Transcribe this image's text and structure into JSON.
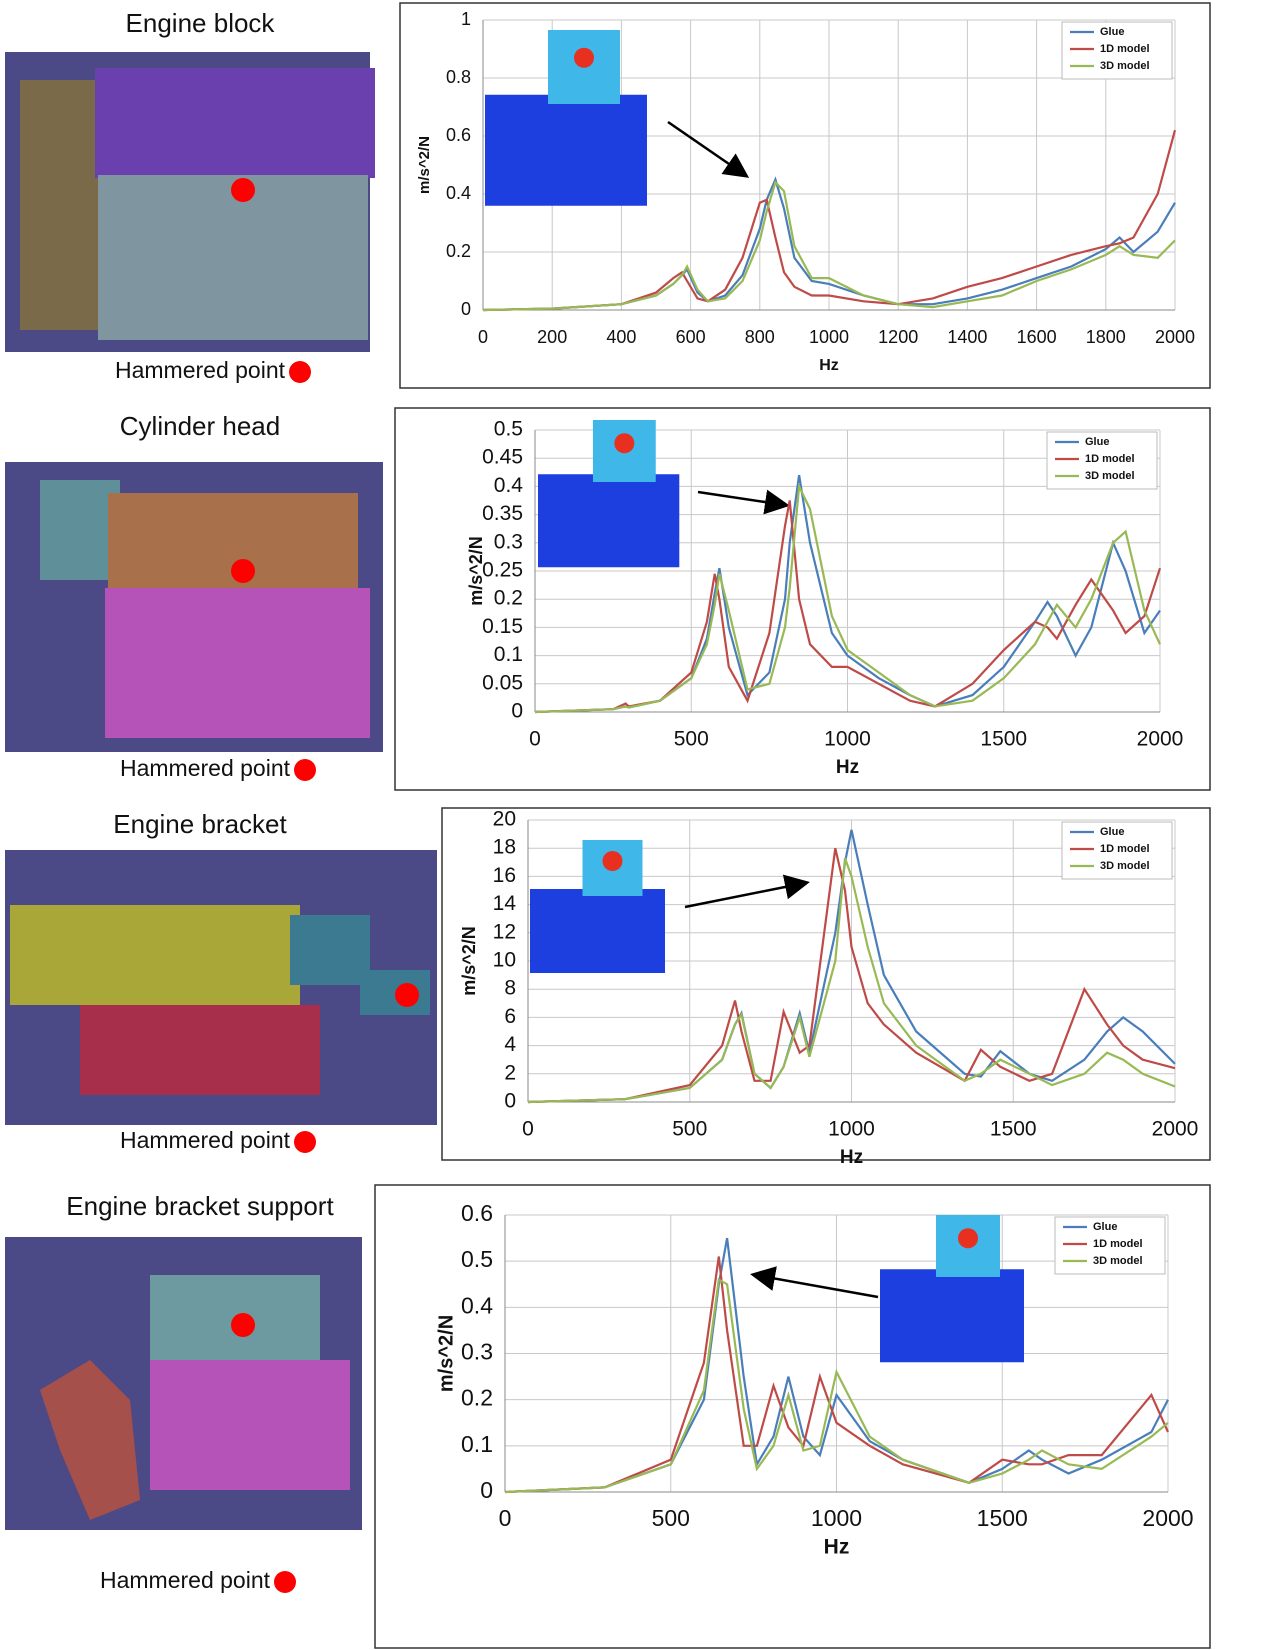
{
  "chart_data": [
    {
      "type": "line",
      "title": "Engine block",
      "annotation": "Hammered point",
      "xlabel": "Hz",
      "ylabel": "m/s^2/N",
      "x": [
        0,
        200,
        400,
        500,
        550,
        575,
        590,
        620,
        650,
        700,
        750,
        800,
        820,
        845,
        870,
        900,
        950,
        1000,
        1100,
        1200,
        1300,
        1400,
        1500,
        1600,
        1700,
        1800,
        1840,
        1880,
        1950,
        2000
      ],
      "series": [
        {
          "name": "Glue",
          "color": "#4a7ebb",
          "values": [
            0,
            0.005,
            0.02,
            0.05,
            0.09,
            0.12,
            0.14,
            0.06,
            0.03,
            0.05,
            0.12,
            0.28,
            0.38,
            0.45,
            0.35,
            0.18,
            0.1,
            0.09,
            0.05,
            0.02,
            0.02,
            0.04,
            0.07,
            0.11,
            0.15,
            0.21,
            0.25,
            0.2,
            0.27,
            0.37
          ]
        },
        {
          "name": "1D model",
          "color": "#be4b48",
          "values": [
            0,
            0.005,
            0.02,
            0.06,
            0.11,
            0.13,
            0.1,
            0.04,
            0.03,
            0.07,
            0.18,
            0.37,
            0.38,
            0.25,
            0.13,
            0.08,
            0.05,
            0.05,
            0.03,
            0.02,
            0.04,
            0.08,
            0.11,
            0.15,
            0.19,
            0.22,
            0.23,
            0.25,
            0.4,
            0.62
          ]
        },
        {
          "name": "3D model",
          "color": "#98b954",
          "values": [
            0,
            0.005,
            0.02,
            0.05,
            0.09,
            0.12,
            0.15,
            0.07,
            0.03,
            0.04,
            0.1,
            0.24,
            0.34,
            0.44,
            0.41,
            0.22,
            0.11,
            0.11,
            0.05,
            0.02,
            0.01,
            0.03,
            0.05,
            0.1,
            0.14,
            0.19,
            0.22,
            0.19,
            0.18,
            0.24
          ]
        }
      ],
      "xlim": [
        0,
        2000
      ],
      "xticks": [
        0,
        200,
        400,
        600,
        800,
        1000,
        1200,
        1400,
        1600,
        1800,
        2000
      ],
      "ylim": [
        0,
        1
      ],
      "yticks": [
        0,
        0.2,
        0.4,
        0.6,
        0.8,
        1
      ],
      "grid": true,
      "legend": "top-right"
    },
    {
      "type": "line",
      "title": "Cylinder head",
      "annotation": "Hammered point",
      "xlabel": "Hz",
      "ylabel": "m/s^2/N",
      "x": [
        0,
        250,
        290,
        300,
        400,
        500,
        550,
        575,
        590,
        620,
        680,
        750,
        800,
        815,
        845,
        880,
        950,
        1000,
        1100,
        1200,
        1280,
        1400,
        1500,
        1600,
        1640,
        1670,
        1730,
        1780,
        1850,
        1890,
        1950,
        2000
      ],
      "series": [
        {
          "name": "Glue",
          "color": "#4a7ebb",
          "values": [
            0,
            0.005,
            0.01,
            0.008,
            0.02,
            0.06,
            0.13,
            0.21,
            0.255,
            0.15,
            0.03,
            0.07,
            0.2,
            0.3,
            0.42,
            0.3,
            0.14,
            0.1,
            0.06,
            0.03,
            0.01,
            0.03,
            0.08,
            0.16,
            0.195,
            0.17,
            0.1,
            0.15,
            0.3,
            0.25,
            0.14,
            0.18
          ]
        },
        {
          "name": "1D model",
          "color": "#be4b48",
          "values": [
            0,
            0.005,
            0.015,
            0.01,
            0.02,
            0.07,
            0.16,
            0.245,
            0.2,
            0.08,
            0.02,
            0.14,
            0.33,
            0.375,
            0.2,
            0.12,
            0.08,
            0.08,
            0.05,
            0.02,
            0.01,
            0.05,
            0.11,
            0.16,
            0.15,
            0.13,
            0.19,
            0.235,
            0.18,
            0.14,
            0.17,
            0.255
          ]
        },
        {
          "name": "3D model",
          "color": "#98b954",
          "values": [
            0,
            0.005,
            0.01,
            0.008,
            0.02,
            0.06,
            0.12,
            0.19,
            0.245,
            0.18,
            0.04,
            0.05,
            0.15,
            0.22,
            0.4,
            0.36,
            0.17,
            0.11,
            0.07,
            0.03,
            0.01,
            0.02,
            0.06,
            0.12,
            0.16,
            0.19,
            0.15,
            0.2,
            0.3,
            0.32,
            0.18,
            0.12
          ]
        }
      ],
      "xlim": [
        0,
        2000
      ],
      "xticks": [
        0,
        500,
        1000,
        1500,
        2000
      ],
      "ylim": [
        0,
        0.5
      ],
      "yticks": [
        0,
        0.05,
        0.1,
        0.15,
        0.2,
        0.25,
        0.3,
        0.35,
        0.4,
        0.45,
        0.5
      ],
      "grid": true,
      "legend": "top-right"
    },
    {
      "type": "line",
      "title": "Engine bracket",
      "annotation": "Hammered point",
      "xlabel": "Hz",
      "ylabel": "m/s^2/N",
      "x": [
        0,
        300,
        500,
        600,
        640,
        660,
        700,
        750,
        790,
        840,
        870,
        950,
        980,
        1000,
        1050,
        1100,
        1200,
        1350,
        1400,
        1460,
        1550,
        1620,
        1720,
        1790,
        1840,
        1900,
        2000
      ],
      "series": [
        {
          "name": "Glue",
          "color": "#4a7ebb",
          "values": [
            0,
            0.2,
            1,
            3,
            5.5,
            6.3,
            2,
            1,
            2.5,
            6.3,
            3.5,
            12,
            17,
            19.3,
            14,
            9,
            5,
            2,
            1.8,
            3.6,
            2,
            1.5,
            3,
            5,
            6,
            5,
            2.7
          ]
        },
        {
          "name": "1D model",
          "color": "#be4b48",
          "values": [
            0,
            0.2,
            1.2,
            4,
            7.2,
            5,
            1.5,
            1.5,
            6.4,
            3.5,
            4,
            18,
            15,
            11,
            7,
            5.5,
            3.5,
            1.5,
            3.7,
            2.5,
            1.5,
            2,
            8,
            5.5,
            4,
            3,
            2.4
          ]
        },
        {
          "name": "3D model",
          "color": "#98b954",
          "values": [
            0,
            0.2,
            1,
            3,
            5.5,
            6.2,
            2,
            1,
            2.5,
            6,
            3.2,
            10,
            17.3,
            16,
            11,
            7,
            4,
            1.5,
            2,
            3,
            2,
            1.2,
            2,
            3.5,
            3,
            2,
            1.1
          ]
        }
      ],
      "xlim": [
        0,
        2000
      ],
      "xticks": [
        0,
        500,
        1000,
        1500,
        2000
      ],
      "ylim": [
        0,
        20
      ],
      "yticks": [
        0,
        2,
        4,
        6,
        8,
        10,
        12,
        14,
        16,
        18,
        20
      ],
      "grid": true,
      "legend": "top-right"
    },
    {
      "type": "line",
      "title": "Engine bracket support",
      "annotation": "Hammered point",
      "xlabel": "Hz",
      "ylabel": "m/s^2/N",
      "x": [
        0,
        300,
        500,
        600,
        645,
        670,
        720,
        760,
        810,
        855,
        900,
        950,
        1000,
        1100,
        1200,
        1400,
        1500,
        1580,
        1620,
        1700,
        1800,
        1950,
        2000
      ],
      "series": [
        {
          "name": "Glue",
          "color": "#4a7ebb",
          "values": [
            0,
            0.01,
            0.06,
            0.2,
            0.45,
            0.55,
            0.25,
            0.06,
            0.12,
            0.25,
            0.12,
            0.08,
            0.21,
            0.11,
            0.07,
            0.02,
            0.05,
            0.09,
            0.07,
            0.04,
            0.07,
            0.13,
            0.2
          ]
        },
        {
          "name": "1D model",
          "color": "#be4b48",
          "values": [
            0,
            0.01,
            0.07,
            0.28,
            0.51,
            0.35,
            0.1,
            0.1,
            0.23,
            0.14,
            0.1,
            0.25,
            0.15,
            0.1,
            0.06,
            0.02,
            0.07,
            0.06,
            0.06,
            0.08,
            0.08,
            0.21,
            0.13
          ]
        },
        {
          "name": "3D model",
          "color": "#98b954",
          "values": [
            0,
            0.01,
            0.06,
            0.22,
            0.46,
            0.45,
            0.18,
            0.05,
            0.1,
            0.21,
            0.09,
            0.1,
            0.26,
            0.12,
            0.07,
            0.02,
            0.04,
            0.07,
            0.09,
            0.06,
            0.05,
            0.12,
            0.15
          ]
        }
      ],
      "xlim": [
        0,
        2000
      ],
      "xticks": [
        0,
        500,
        1000,
        1500,
        2000
      ],
      "ylim": [
        0,
        0.6
      ],
      "yticks": [
        0,
        0.1,
        0.2,
        0.3,
        0.4,
        0.5,
        0.6
      ],
      "grid": true,
      "legend": "top-right"
    }
  ]
}
